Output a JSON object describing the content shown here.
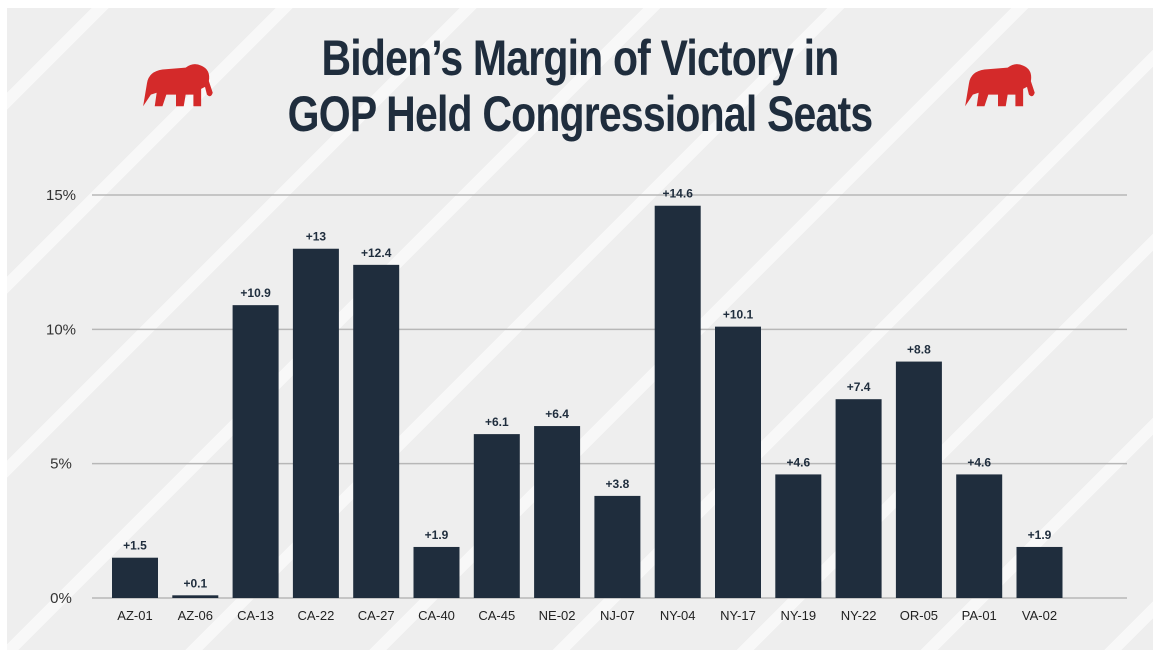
{
  "title_line1": "Biden’s Margin of Victory in",
  "title_line2": "GOP Held Congressional Seats",
  "icons": [
    "elephant-logo-icon",
    "elephant-logo-icon"
  ],
  "colors": {
    "bar": "#1f2d3d",
    "accent": "#d42a2a",
    "background": "#eeeeee"
  },
  "chart_data": {
    "type": "bar",
    "title": "Biden’s Margin of Victory in GOP Held Congressional Seats",
    "xlabel": "",
    "ylabel": "",
    "ylim": [
      0,
      15
    ],
    "yticks": [
      0,
      5,
      10,
      15
    ],
    "ytick_labels": [
      "0%",
      "5%",
      "10%",
      "15%"
    ],
    "grid": true,
    "categories": [
      "AZ-01",
      "AZ-06",
      "CA-13",
      "CA-22",
      "CA-27",
      "CA-40",
      "CA-45",
      "NE-02",
      "NJ-07",
      "NY-04",
      "NY-17",
      "NY-19",
      "NY-22",
      "OR-05",
      "PA-01",
      "VA-02"
    ],
    "values": [
      1.5,
      0.1,
      10.9,
      13,
      12.4,
      1.9,
      6.1,
      6.4,
      3.8,
      14.6,
      10.1,
      4.6,
      7.4,
      8.8,
      4.6,
      1.9
    ],
    "data_labels": [
      "+1.5",
      "+0.1",
      "+10.9",
      "+13",
      "+12.4",
      "+1.9",
      "+6.1",
      "+6.4",
      "+3.8",
      "+14.6",
      "+10.1",
      "+4.6",
      "+7.4",
      "+8.8",
      "+4.6",
      "+1.9"
    ]
  }
}
